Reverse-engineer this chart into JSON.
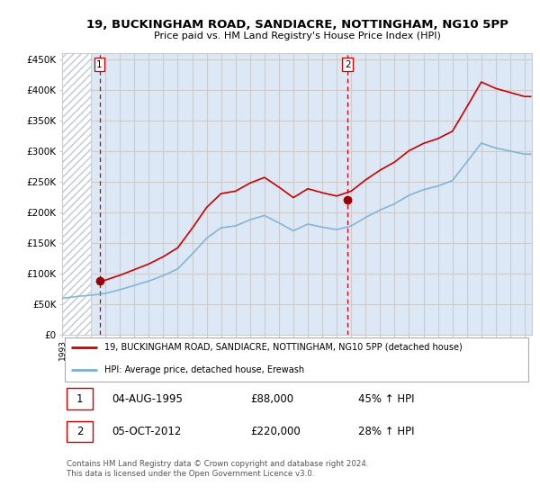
{
  "title": "19, BUCKINGHAM ROAD, SANDIACRE, NOTTINGHAM, NG10 5PP",
  "subtitle": "Price paid vs. HM Land Registry's House Price Index (HPI)",
  "ylabel_ticks": [
    "£0",
    "£50K",
    "£100K",
    "£150K",
    "£200K",
    "£250K",
    "£300K",
    "£350K",
    "£400K",
    "£450K"
  ],
  "ytick_values": [
    0,
    50000,
    100000,
    150000,
    200000,
    250000,
    300000,
    350000,
    400000,
    450000
  ],
  "ylim": [
    0,
    460000
  ],
  "xlim_start": 1993.0,
  "xlim_end": 2025.5,
  "sale1_year": 1995.587,
  "sale1_price": 88000,
  "sale1_label": "1",
  "sale2_year": 2012.75,
  "sale2_price": 220000,
  "sale2_label": "2",
  "red_line_color": "#cc0000",
  "blue_line_color": "#7bafd4",
  "sale_dot_color": "#990000",
  "vline_color": "#cc0000",
  "grid_color": "#cccccc",
  "plot_bg_color": "#dce8f5",
  "hatch_color": "#c0c8d0",
  "background_color": "#ffffff",
  "legend_label_red": "19, BUCKINGHAM ROAD, SANDIACRE, NOTTINGHAM, NG10 5PP (detached house)",
  "legend_label_blue": "HPI: Average price, detached house, Erewash",
  "footnote": "Contains HM Land Registry data © Crown copyright and database right 2024.\nThis data is licensed under the Open Government Licence v3.0.",
  "table_rows": [
    {
      "num": "1",
      "date": "04-AUG-1995",
      "price": "£88,000",
      "hpi": "45% ↑ HPI"
    },
    {
      "num": "2",
      "date": "05-OCT-2012",
      "price": "£220,000",
      "hpi": "28% ↑ HPI"
    }
  ]
}
